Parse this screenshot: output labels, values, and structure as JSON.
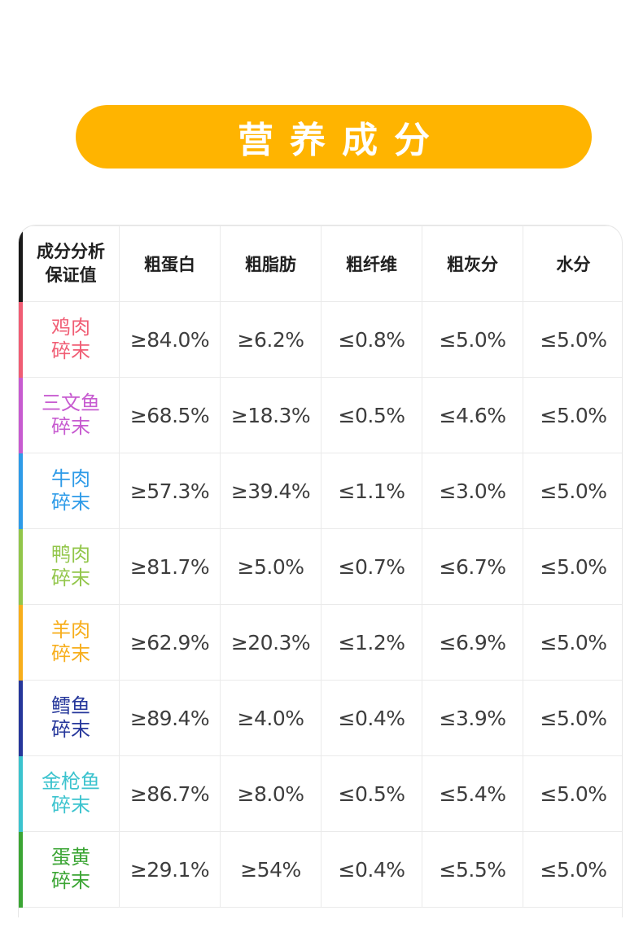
{
  "banner": {
    "title": "营养成分"
  },
  "table": {
    "corner": [
      "成分分析",
      "保证值"
    ],
    "headers": [
      "粗蛋白",
      "粗脂肪",
      "粗纤维",
      "粗灰分",
      "水分"
    ],
    "rows": [
      {
        "name": [
          "鸡肉",
          "碎末"
        ],
        "color": "#F05D74",
        "values": [
          "≥84.0%",
          "≥6.2%",
          "≤0.8%",
          "≤5.0%",
          "≤5.0%"
        ]
      },
      {
        "name": [
          "三文鱼",
          "碎末"
        ],
        "color": "#C75BD0",
        "values": [
          "≥68.5%",
          "≥18.3%",
          "≤0.5%",
          "≤4.6%",
          "≤5.0%"
        ]
      },
      {
        "name": [
          "牛肉",
          "碎末"
        ],
        "color": "#2E9BE8",
        "values": [
          "≥57.3%",
          "≥39.4%",
          "≤1.1%",
          "≤3.0%",
          "≤5.0%"
        ]
      },
      {
        "name": [
          "鸭肉",
          "碎末"
        ],
        "color": "#92C64A",
        "values": [
          "≥81.7%",
          "≥5.0%",
          "≤0.7%",
          "≤6.7%",
          "≤5.0%"
        ]
      },
      {
        "name": [
          "羊肉",
          "碎末"
        ],
        "color": "#F7AE1C",
        "values": [
          "≥62.9%",
          "≥20.3%",
          "≤1.2%",
          "≤6.9%",
          "≤5.0%"
        ]
      },
      {
        "name": [
          "鳕鱼",
          "碎末"
        ],
        "color": "#26379B",
        "values": [
          "≥89.4%",
          "≥4.0%",
          "≤0.4%",
          "≤3.9%",
          "≤5.0%"
        ]
      },
      {
        "name": [
          "金枪鱼",
          "碎末"
        ],
        "color": "#3BC3CE",
        "values": [
          "≥86.7%",
          "≥8.0%",
          "≤0.5%",
          "≤5.4%",
          "≤5.0%"
        ]
      },
      {
        "name": [
          "蛋黄",
          "碎末"
        ],
        "color": "#3BA534",
        "values": [
          "≥29.1%",
          "≥54%",
          "≤0.4%",
          "≤5.5%",
          "≤5.0%"
        ]
      }
    ]
  }
}
